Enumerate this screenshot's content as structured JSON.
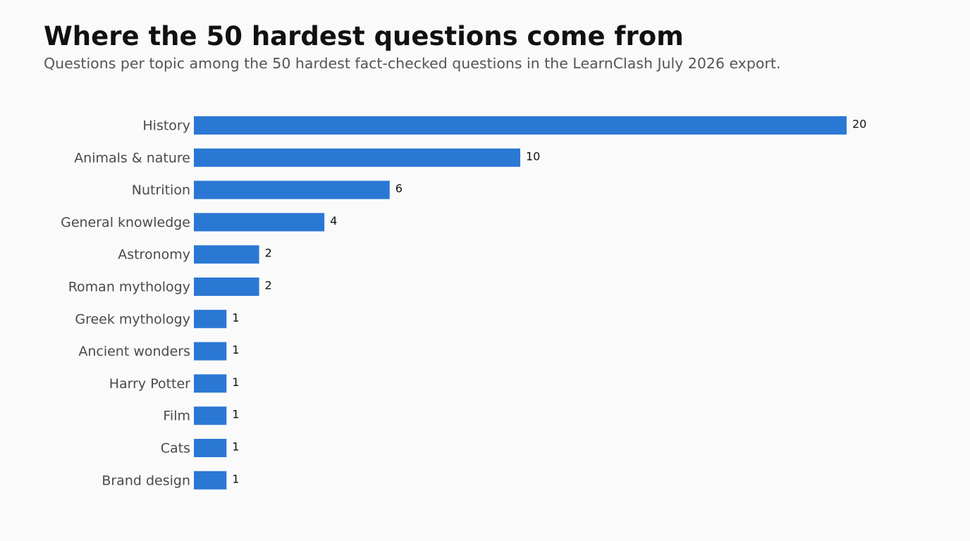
{
  "chart_data": {
    "type": "bar",
    "title": "Where the 50 hardest questions come from",
    "subtitle": "Questions per topic among the 50 hardest fact-checked questions in the LearnClash July 2026 export.",
    "categories": [
      "History",
      "Animals & nature",
      "Nutrition",
      "General knowledge",
      "Astronomy",
      "Roman mythology",
      "Greek mythology",
      "Ancient wonders",
      "Harry Potter",
      "Film",
      "Cats",
      "Brand design"
    ],
    "values": [
      20,
      10,
      6,
      4,
      2,
      2,
      1,
      1,
      1,
      1,
      1,
      1
    ],
    "color": "#2b78d4"
  }
}
